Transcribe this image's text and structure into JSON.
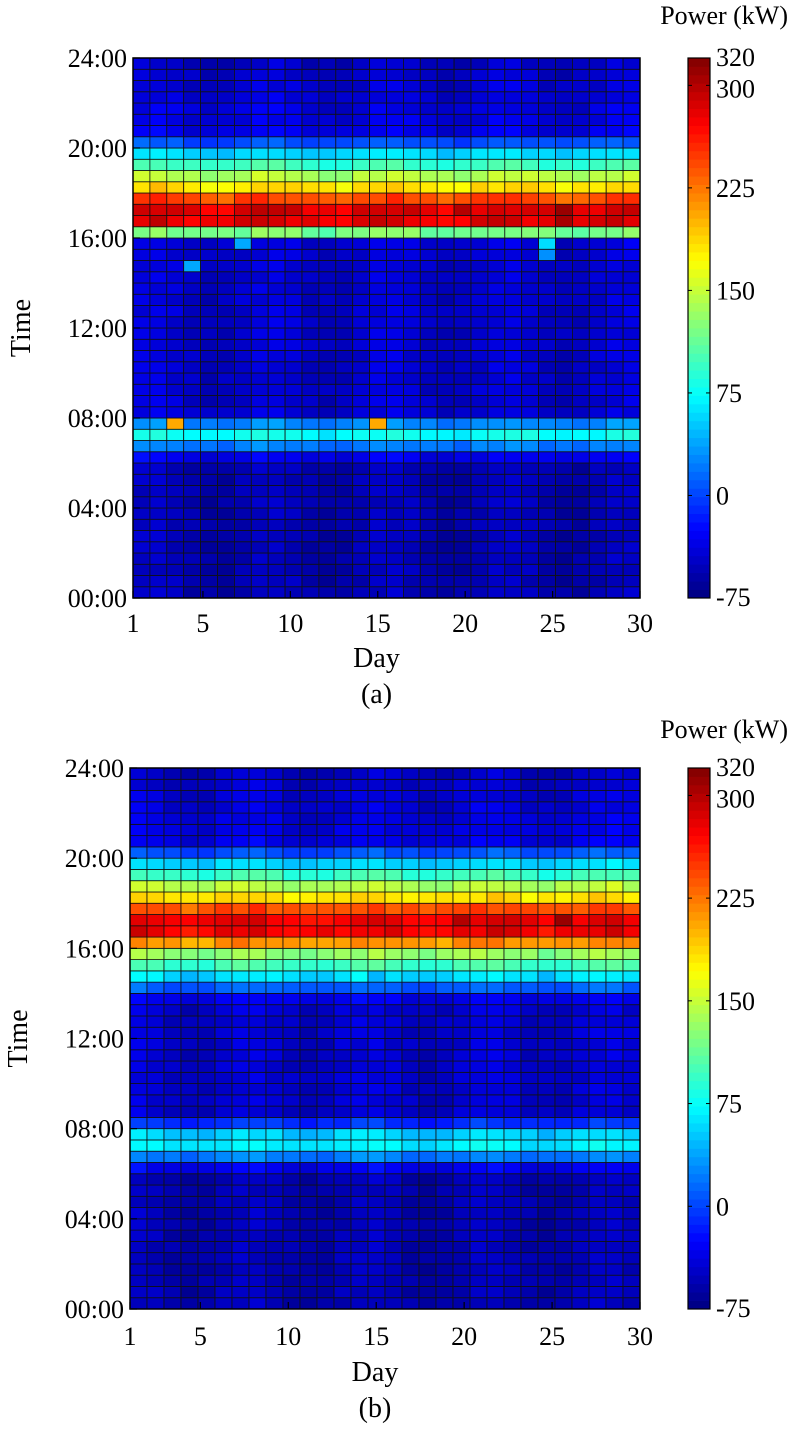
{
  "chart_data": [
    {
      "type": "heatmap",
      "panel_label": "(a)",
      "xlabel": "Day",
      "ylabel": "Time",
      "colorbar_label": "Power (kW)",
      "x": {
        "min": 1,
        "max": 30,
        "ticks": [
          1,
          5,
          10,
          15,
          20,
          25,
          30
        ]
      },
      "y": {
        "ticks": [
          "00:00",
          "04:00",
          "08:00",
          "12:00",
          "16:00",
          "20:00",
          "24:00"
        ],
        "range_hours": [
          0,
          24
        ]
      },
      "colorbar": {
        "min": -75,
        "max": 320,
        "ticks": [
          -75,
          0,
          75,
          150,
          225,
          300,
          320
        ]
      },
      "bins_per_day": 48,
      "days": 30,
      "profile": {
        "hours": [
          0,
          6,
          6.5,
          7,
          7.5,
          8,
          8.5,
          12,
          14,
          15,
          16,
          16.5,
          17.5,
          18,
          18.5,
          19,
          19.5,
          20,
          20.5,
          24
        ],
        "power_kw": [
          -55,
          -55,
          -10,
          55,
          95,
          -40,
          -45,
          -45,
          -45,
          -45,
          -40,
          280,
          285,
          200,
          165,
          120,
          70,
          45,
          -35,
          -50
        ]
      },
      "events": [
        {
          "day": 3,
          "hour": 7.75,
          "power_kw": 205
        },
        {
          "day": 15,
          "hour": 7.75,
          "power_kw": 205
        },
        {
          "day": 4,
          "hour": 14.75,
          "power_kw": 40
        },
        {
          "day": 7,
          "hour": 15.75,
          "power_kw": 40
        },
        {
          "day": 25,
          "hour": 15.75,
          "power_kw": 60
        },
        {
          "day": 25,
          "hour": 15.25,
          "power_kw": 30
        },
        {
          "day": 26,
          "hour": 17.25,
          "power_kw": 310
        },
        {
          "day": 26,
          "hour": 16.75,
          "power_kw": 305
        },
        {
          "day": 20,
          "hour": 17.25,
          "power_kw": 300
        }
      ]
    },
    {
      "type": "heatmap",
      "panel_label": "(b)",
      "xlabel": "Day",
      "ylabel": "Time",
      "colorbar_label": "Power (kW)",
      "x": {
        "min": 1,
        "max": 30,
        "ticks": [
          1,
          5,
          10,
          15,
          20,
          25,
          30
        ]
      },
      "y": {
        "ticks": [
          "00:00",
          "04:00",
          "08:00",
          "12:00",
          "16:00",
          "20:00",
          "24:00"
        ],
        "range_hours": [
          0,
          24
        ]
      },
      "colorbar": {
        "min": -75,
        "max": 320,
        "ticks": [
          -75,
          0,
          75,
          150,
          225,
          300,
          320
        ]
      },
      "bins_per_day": 48,
      "days": 30,
      "profile": {
        "hours": [
          0,
          6,
          6.5,
          7,
          7.5,
          8,
          8.5,
          13.5,
          14,
          14.5,
          15,
          15.5,
          16,
          16.5,
          17.5,
          18,
          18.5,
          19,
          19.5,
          20,
          20.5,
          24
        ],
        "power_kw": [
          -55,
          -55,
          -10,
          55,
          80,
          30,
          -45,
          -45,
          -20,
          40,
          85,
          110,
          150,
          275,
          280,
          200,
          165,
          120,
          70,
          45,
          -35,
          -50
        ]
      },
      "events": [
        {
          "day": 26,
          "hour": 17.25,
          "power_kw": 310
        },
        {
          "day": 20,
          "hour": 17.25,
          "power_kw": 300
        },
        {
          "day": 15,
          "hour": 14.75,
          "power_kw": 45
        },
        {
          "day": 4,
          "hour": 14.75,
          "power_kw": 45
        },
        {
          "day": 25,
          "hour": 14.75,
          "power_kw": 45
        }
      ]
    }
  ]
}
